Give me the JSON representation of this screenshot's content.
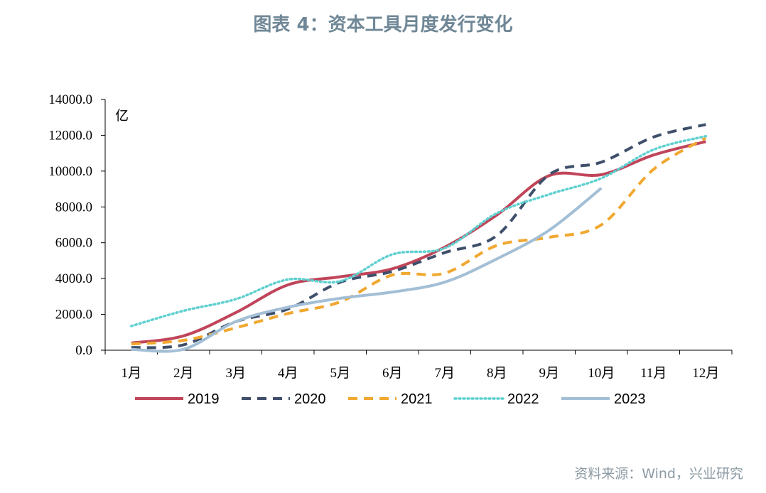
{
  "title": "图表 4：资本工具月度发行变化",
  "source": "资料来源：Wind，兴业研究",
  "chart_data": {
    "type": "line",
    "unit_label": "亿",
    "categories": [
      "1月",
      "2月",
      "3月",
      "4月",
      "5月",
      "6月",
      "7月",
      "8月",
      "9月",
      "10月",
      "11月",
      "12月"
    ],
    "ylim": [
      0,
      14000
    ],
    "y_ticks": [
      0,
      2000,
      4000,
      6000,
      8000,
      10000,
      12000,
      14000
    ],
    "y_tick_labels": [
      "0.0",
      "2000.0",
      "4000.0",
      "6000.0",
      "8000.0",
      "10000.0",
      "12000.0",
      "14000.0"
    ],
    "grid": false,
    "legend_position": "bottom",
    "series": [
      {
        "name": "2019",
        "color": "#c0455a",
        "style": "solid",
        "values": [
          400,
          800,
          2100,
          3650,
          4100,
          4550,
          5750,
          7550,
          9750,
          9800,
          10900,
          11650
        ]
      },
      {
        "name": "2020",
        "color": "#3f4f6b",
        "style": "dashed",
        "values": [
          150,
          300,
          1600,
          2300,
          3800,
          4400,
          5450,
          6400,
          9800,
          10500,
          11900,
          12600
        ]
      },
      {
        "name": "2021",
        "color": "#f0a830",
        "style": "dashed",
        "values": [
          350,
          550,
          1250,
          2050,
          2700,
          4200,
          4300,
          5850,
          6300,
          7000,
          10100,
          11850
        ]
      },
      {
        "name": "2022",
        "color": "#5fd0d0",
        "style": "dotted",
        "values": [
          1350,
          2200,
          2850,
          3950,
          3850,
          5350,
          5700,
          7650,
          8700,
          9600,
          11200,
          11950
        ]
      },
      {
        "name": "2023",
        "color": "#a3bfd6",
        "style": "solid",
        "values": [
          50,
          50,
          1600,
          2400,
          2900,
          3250,
          3800,
          5100,
          6700,
          9050,
          null,
          null
        ]
      }
    ]
  }
}
